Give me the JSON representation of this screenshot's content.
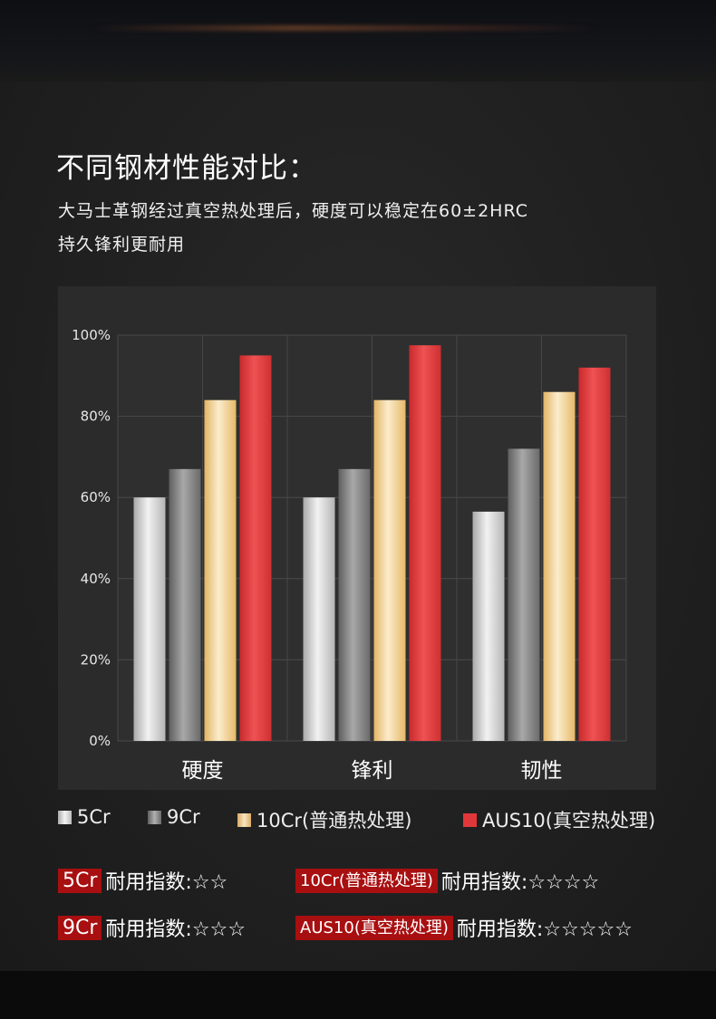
{
  "heading": {
    "title": "不同钢材性能对比：",
    "line1": "大马士革钢经过真空热处理后，硬度可以稳定在60±2HRC",
    "line2": "持久锋利更耐用"
  },
  "chart_data": {
    "type": "bar",
    "categories": [
      "硬度",
      "锋利",
      "韧性"
    ],
    "ytick_labels": [
      "100%",
      "80%",
      "60%",
      "40%",
      "20%",
      "0%"
    ],
    "ylim": [
      0,
      100
    ],
    "grid": true,
    "legend_position": "bottom",
    "series": [
      {
        "name": "5Cr",
        "values": [
          60,
          60,
          56.5
        ]
      },
      {
        "name": "9Cr",
        "values": [
          67,
          67,
          72
        ]
      },
      {
        "name": "10Cr(普通热处理)",
        "values": [
          84,
          84,
          86
        ]
      },
      {
        "name": "AUS10(真空热处理)",
        "values": [
          95,
          97.5,
          92
        ]
      }
    ],
    "colors": [
      "#d9d9d9",
      "#8c8c8c",
      "#f3d48f",
      "#e33b3b"
    ]
  },
  "legend": [
    {
      "label": "5Cr",
      "color": "#e6e6e6"
    },
    {
      "label": "9Cr",
      "color": "#9a9a9a"
    },
    {
      "label": "10Cr(普通热处理)",
      "color": "#e8c98e"
    },
    {
      "label": "AUS10(真空热处理)",
      "color": "#e0383a"
    }
  ],
  "ratings": {
    "r1": {
      "tag": "5Cr",
      "text": "耐用指数:☆☆"
    },
    "r2": {
      "tag": "10Cr(普通热处理)",
      "text": "耐用指数:☆☆☆☆"
    },
    "r3": {
      "tag": "9Cr",
      "text": "耐用指数:☆☆☆"
    },
    "r4": {
      "tag": "AUS10(真空热处理)",
      "text": "耐用指数:☆☆☆☆☆"
    }
  }
}
